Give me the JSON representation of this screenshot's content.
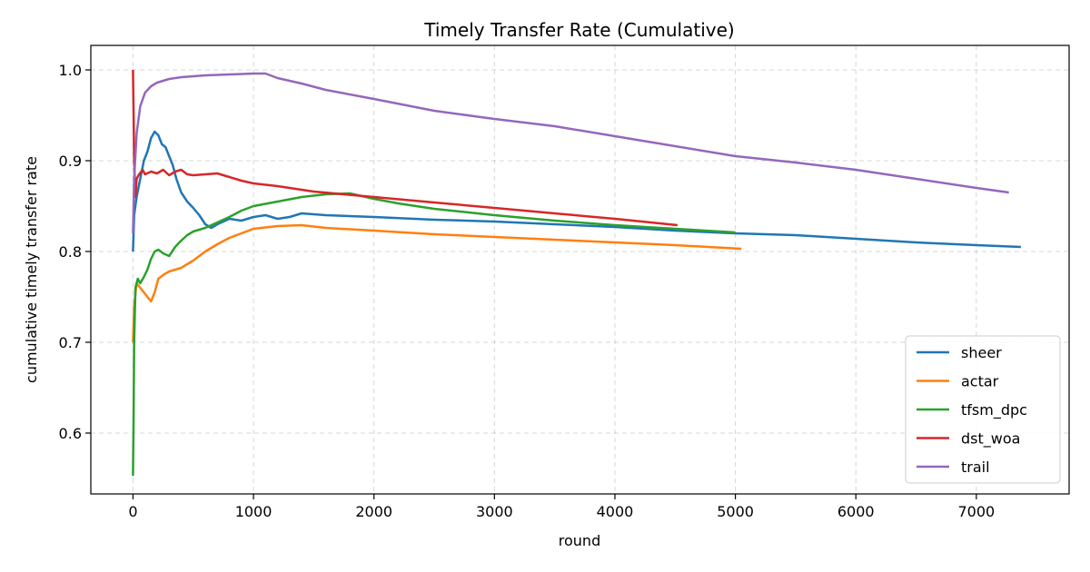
{
  "chart_data": {
    "type": "line",
    "title": "Timely Transfer Rate (Cumulative)",
    "xlabel": "round",
    "ylabel": "cumulative timely transfer rate",
    "xlim": [
      -350,
      7770
    ],
    "ylim": [
      0.533,
      1.027
    ],
    "xticks": [
      0,
      1000,
      2000,
      3000,
      4000,
      5000,
      6000,
      7000
    ],
    "yticks": [
      0.6,
      0.7,
      0.8,
      0.9,
      1.0
    ],
    "xtick_labels": [
      "0",
      "1000",
      "2000",
      "3000",
      "4000",
      "5000",
      "6000",
      "7000"
    ],
    "ytick_labels": [
      "0.6",
      "0.7",
      "0.8",
      "0.9",
      "1.0"
    ],
    "grid": true,
    "legend_position": "lower-right",
    "series": [
      {
        "name": "sheer",
        "color": "#1f77b4",
        "points": [
          [
            0,
            0.8
          ],
          [
            10,
            0.84
          ],
          [
            30,
            0.86
          ],
          [
            60,
            0.88
          ],
          [
            90,
            0.9
          ],
          [
            120,
            0.91
          ],
          [
            150,
            0.925
          ],
          [
            180,
            0.932
          ],
          [
            210,
            0.928
          ],
          [
            240,
            0.918
          ],
          [
            270,
            0.915
          ],
          [
            300,
            0.905
          ],
          [
            330,
            0.895
          ],
          [
            360,
            0.88
          ],
          [
            400,
            0.865
          ],
          [
            450,
            0.855
          ],
          [
            500,
            0.848
          ],
          [
            550,
            0.84
          ],
          [
            600,
            0.83
          ],
          [
            650,
            0.826
          ],
          [
            700,
            0.83
          ],
          [
            800,
            0.836
          ],
          [
            900,
            0.834
          ],
          [
            1000,
            0.838
          ],
          [
            1100,
            0.84
          ],
          [
            1200,
            0.836
          ],
          [
            1300,
            0.838
          ],
          [
            1400,
            0.842
          ],
          [
            1600,
            0.84
          ],
          [
            2000,
            0.838
          ],
          [
            2500,
            0.835
          ],
          [
            3000,
            0.833
          ],
          [
            3500,
            0.83
          ],
          [
            4000,
            0.827
          ],
          [
            4500,
            0.823
          ],
          [
            5000,
            0.82
          ],
          [
            5500,
            0.818
          ],
          [
            6000,
            0.814
          ],
          [
            6500,
            0.81
          ],
          [
            7000,
            0.807
          ],
          [
            7370,
            0.805
          ]
        ]
      },
      {
        "name": "actar",
        "color": "#ff7f0e",
        "points": [
          [
            0,
            0.7
          ],
          [
            10,
            0.74
          ],
          [
            30,
            0.765
          ],
          [
            60,
            0.76
          ],
          [
            90,
            0.755
          ],
          [
            120,
            0.75
          ],
          [
            150,
            0.745
          ],
          [
            180,
            0.755
          ],
          [
            210,
            0.77
          ],
          [
            260,
            0.775
          ],
          [
            300,
            0.778
          ],
          [
            400,
            0.782
          ],
          [
            500,
            0.79
          ],
          [
            600,
            0.8
          ],
          [
            700,
            0.808
          ],
          [
            800,
            0.815
          ],
          [
            900,
            0.82
          ],
          [
            1000,
            0.825
          ],
          [
            1200,
            0.828
          ],
          [
            1400,
            0.829
          ],
          [
            1600,
            0.826
          ],
          [
            2000,
            0.823
          ],
          [
            2500,
            0.819
          ],
          [
            3000,
            0.816
          ],
          [
            3500,
            0.813
          ],
          [
            4000,
            0.81
          ],
          [
            4500,
            0.807
          ],
          [
            5050,
            0.803
          ]
        ]
      },
      {
        "name": "tfsm_dpc",
        "color": "#2ca02c",
        "points": [
          [
            0,
            0.553
          ],
          [
            5,
            0.62
          ],
          [
            10,
            0.7
          ],
          [
            20,
            0.76
          ],
          [
            40,
            0.77
          ],
          [
            60,
            0.765
          ],
          [
            90,
            0.772
          ],
          [
            120,
            0.78
          ],
          [
            150,
            0.792
          ],
          [
            180,
            0.8
          ],
          [
            210,
            0.802
          ],
          [
            250,
            0.798
          ],
          [
            300,
            0.795
          ],
          [
            350,
            0.805
          ],
          [
            400,
            0.812
          ],
          [
            450,
            0.818
          ],
          [
            500,
            0.822
          ],
          [
            600,
            0.826
          ],
          [
            700,
            0.832
          ],
          [
            800,
            0.838
          ],
          [
            900,
            0.845
          ],
          [
            1000,
            0.85
          ],
          [
            1200,
            0.855
          ],
          [
            1400,
            0.86
          ],
          [
            1600,
            0.863
          ],
          [
            1800,
            0.864
          ],
          [
            2000,
            0.858
          ],
          [
            2200,
            0.853
          ],
          [
            2500,
            0.847
          ],
          [
            3000,
            0.84
          ],
          [
            3500,
            0.834
          ],
          [
            4000,
            0.829
          ],
          [
            4500,
            0.825
          ],
          [
            5000,
            0.821
          ]
        ]
      },
      {
        "name": "dst_woa",
        "color": "#d62728",
        "points": [
          [
            0,
            1.0
          ],
          [
            5,
            0.95
          ],
          [
            10,
            0.9
          ],
          [
            20,
            0.86
          ],
          [
            30,
            0.88
          ],
          [
            50,
            0.885
          ],
          [
            80,
            0.89
          ],
          [
            100,
            0.885
          ],
          [
            150,
            0.888
          ],
          [
            200,
            0.886
          ],
          [
            250,
            0.89
          ],
          [
            300,
            0.884
          ],
          [
            350,
            0.888
          ],
          [
            400,
            0.89
          ],
          [
            450,
            0.885
          ],
          [
            500,
            0.884
          ],
          [
            600,
            0.885
          ],
          [
            700,
            0.886
          ],
          [
            800,
            0.882
          ],
          [
            900,
            0.878
          ],
          [
            1000,
            0.875
          ],
          [
            1200,
            0.872
          ],
          [
            1500,
            0.866
          ],
          [
            2000,
            0.86
          ],
          [
            2500,
            0.854
          ],
          [
            3000,
            0.848
          ],
          [
            3500,
            0.842
          ],
          [
            4000,
            0.836
          ],
          [
            4520,
            0.829
          ]
        ]
      },
      {
        "name": "trail",
        "color": "#9467bd",
        "points": [
          [
            0,
            0.82
          ],
          [
            10,
            0.88
          ],
          [
            30,
            0.93
          ],
          [
            60,
            0.96
          ],
          [
            100,
            0.975
          ],
          [
            150,
            0.982
          ],
          [
            200,
            0.986
          ],
          [
            300,
            0.99
          ],
          [
            400,
            0.992
          ],
          [
            600,
            0.994
          ],
          [
            800,
            0.995
          ],
          [
            1000,
            0.996
          ],
          [
            1100,
            0.996
          ],
          [
            1200,
            0.991
          ],
          [
            1400,
            0.985
          ],
          [
            1600,
            0.978
          ],
          [
            2000,
            0.968
          ],
          [
            2500,
            0.955
          ],
          [
            3000,
            0.946
          ],
          [
            3500,
            0.938
          ],
          [
            4000,
            0.927
          ],
          [
            4500,
            0.916
          ],
          [
            5000,
            0.905
          ],
          [
            5500,
            0.898
          ],
          [
            6000,
            0.89
          ],
          [
            6500,
            0.88
          ],
          [
            7000,
            0.87
          ],
          [
            7270,
            0.865
          ]
        ]
      }
    ]
  }
}
